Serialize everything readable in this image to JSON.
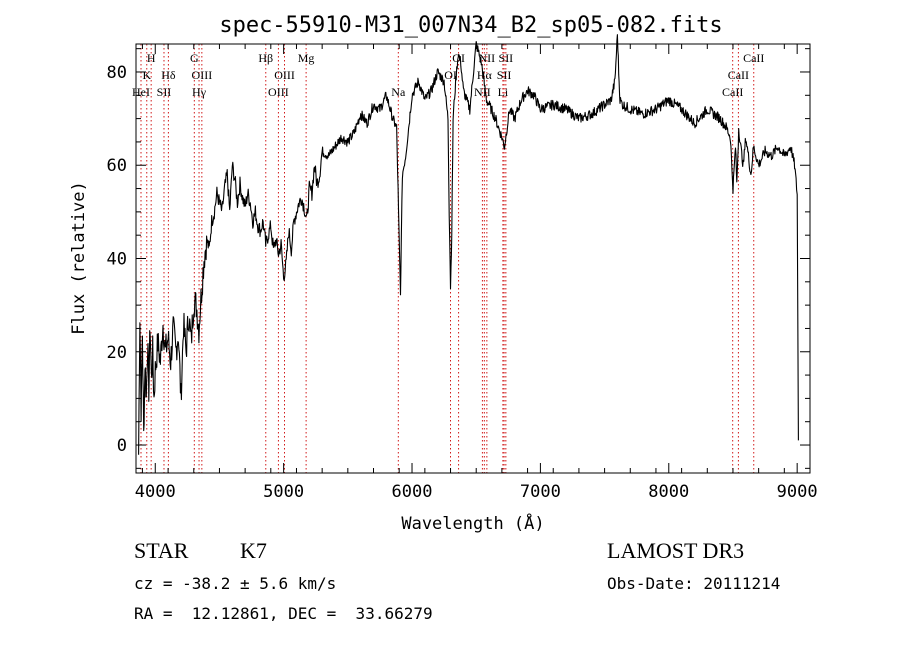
{
  "chart_data": {
    "type": "line",
    "title": "spec-55910-M31_007N34_B2_sp05-082.fits",
    "xlabel": "Wavelength (Å)",
    "ylabel": "Flux (relative)",
    "xlim": [
      3850,
      9100
    ],
    "ylim": [
      -6,
      86
    ],
    "x_ticks": [
      4000,
      5000,
      6000,
      7000,
      8000,
      9000
    ],
    "y_ticks": [
      0,
      20,
      40,
      60,
      80
    ],
    "x_tick_labels": [
      "4000",
      "5000",
      "6000",
      "7000",
      "8000",
      "9000"
    ],
    "y_tick_labels": [
      "0",
      "20",
      "40",
      "60",
      "80"
    ],
    "series": [
      {
        "name": "flux",
        "x": [
          3870,
          3880,
          3890,
          3900,
          3910,
          3920,
          3930,
          3940,
          3950,
          3960,
          3970,
          3980,
          3990,
          4000,
          4020,
          4040,
          4060,
          4080,
          4100,
          4120,
          4140,
          4160,
          4180,
          4200,
          4220,
          4240,
          4260,
          4280,
          4300,
          4320,
          4340,
          4360,
          4380,
          4400,
          4420,
          4440,
          4460,
          4480,
          4500,
          4520,
          4540,
          4560,
          4580,
          4600,
          4620,
          4640,
          4660,
          4680,
          4700,
          4720,
          4740,
          4760,
          4780,
          4800,
          4820,
          4840,
          4860,
          4880,
          4900,
          4920,
          4940,
          4960,
          4980,
          5000,
          5020,
          5040,
          5060,
          5080,
          5100,
          5120,
          5140,
          5160,
          5180,
          5200,
          5220,
          5240,
          5260,
          5280,
          5300,
          5350,
          5400,
          5450,
          5500,
          5550,
          5600,
          5650,
          5700,
          5750,
          5800,
          5850,
          5880,
          5895,
          5910,
          5925,
          5950,
          6000,
          6050,
          6100,
          6150,
          6200,
          6250,
          6280,
          6290,
          6300,
          6310,
          6320,
          6340,
          6360,
          6380,
          6400,
          6450,
          6500,
          6540,
          6560,
          6580,
          6600,
          6650,
          6700,
          6720,
          6740,
          6760,
          6800,
          6850,
          6900,
          6950,
          7000,
          7100,
          7200,
          7300,
          7400,
          7500,
          7550,
          7580,
          7600,
          7610,
          7620,
          7640,
          7700,
          7800,
          7900,
          8000,
          8100,
          8200,
          8300,
          8400,
          8450,
          8480,
          8500,
          8520,
          8530,
          8545,
          8560,
          8580,
          8600,
          8640,
          8660,
          8680,
          8700,
          8750,
          8800,
          8850,
          8900,
          8950,
          8980,
          9000,
          9010
        ],
        "y": [
          -2,
          28,
          8,
          24,
          2,
          18,
          10,
          22,
          12,
          26,
          14,
          20,
          10,
          16,
          22,
          18,
          26,
          20,
          23,
          18,
          25,
          20,
          24,
          10,
          26,
          20,
          28,
          22,
          31,
          30,
          25,
          33,
          40,
          44,
          42,
          48,
          50,
          54,
          52,
          50,
          55,
          58,
          50,
          60,
          57,
          52,
          56,
          53,
          51,
          54,
          52,
          48,
          50,
          47,
          46,
          48,
          43,
          45,
          47,
          42,
          44,
          41,
          43,
          36,
          39,
          46,
          42,
          48,
          50,
          52,
          53,
          51,
          48,
          55,
          54,
          60,
          56,
          58,
          63,
          62,
          64,
          66,
          65,
          67,
          71,
          69,
          73,
          72,
          75,
          70,
          68,
          50,
          32,
          58,
          62,
          75,
          78,
          74,
          76,
          80,
          78,
          70,
          50,
          34,
          46,
          70,
          78,
          84,
          82,
          76,
          72,
          86,
          82,
          78,
          74,
          73,
          70,
          66,
          64,
          68,
          72,
          70,
          74,
          76,
          75,
          72,
          73,
          72,
          70,
          71,
          73,
          74,
          78,
          88,
          80,
          74,
          73,
          72,
          71,
          72,
          74,
          72,
          69,
          72,
          70,
          68,
          66,
          55,
          64,
          56,
          68,
          64,
          60,
          66,
          58,
          64,
          62,
          60,
          63,
          62,
          64,
          62,
          64,
          60,
          54,
          1
        ]
      }
    ],
    "annotations": [
      {
        "label": "H",
        "x": 3968,
        "row": 1
      },
      {
        "label": "K",
        "x": 3934,
        "row": 2
      },
      {
        "label": "HeI",
        "x": 3889,
        "row": 3
      },
      {
        "label": "SII",
        "x": 4068,
        "row": 3
      },
      {
        "label": "Hδ",
        "x": 4102,
        "row": 2
      },
      {
        "label": "G",
        "x": 4304,
        "row": 1
      },
      {
        "label": "OIII",
        "x": 4363,
        "row": 2
      },
      {
        "label": "Hγ",
        "x": 4341,
        "row": 3
      },
      {
        "label": "Hβ",
        "x": 4861,
        "row": 1
      },
      {
        "label": "OIII",
        "x": 5007,
        "row": 2
      },
      {
        "label": "OIII",
        "x": 4959,
        "row": 3
      },
      {
        "label": "Mg",
        "x": 5175,
        "row": 1
      },
      {
        "label": "Na",
        "x": 5893,
        "row": 3
      },
      {
        "label": "OI",
        "x": 6363,
        "row": 1
      },
      {
        "label": "OI",
        "x": 6300,
        "row": 2
      },
      {
        "label": "NII",
        "x": 6583,
        "row": 1
      },
      {
        "label": "Hα",
        "x": 6563,
        "row": 2
      },
      {
        "label": "NII",
        "x": 6548,
        "row": 3
      },
      {
        "label": "SII",
        "x": 6731,
        "row": 1
      },
      {
        "label": "SII",
        "x": 6717,
        "row": 2
      },
      {
        "label": "Li",
        "x": 6708,
        "row": 3
      },
      {
        "label": "CaII",
        "x": 8662,
        "row": 1
      },
      {
        "label": "CaII",
        "x": 8542,
        "row": 2
      },
      {
        "label": "CaII",
        "x": 8498,
        "row": 3
      }
    ],
    "line_color": "#000000",
    "marker_color": "#cc0000"
  },
  "info": {
    "object_class": "STAR",
    "subclass": "K7",
    "redshift": "cz = -38.2 ± 5.6 km/s",
    "coords": "RA =  12.12861, DEC =  33.66279",
    "survey": "LAMOST DR3",
    "obs_date": "Obs-Date: 20111214"
  }
}
